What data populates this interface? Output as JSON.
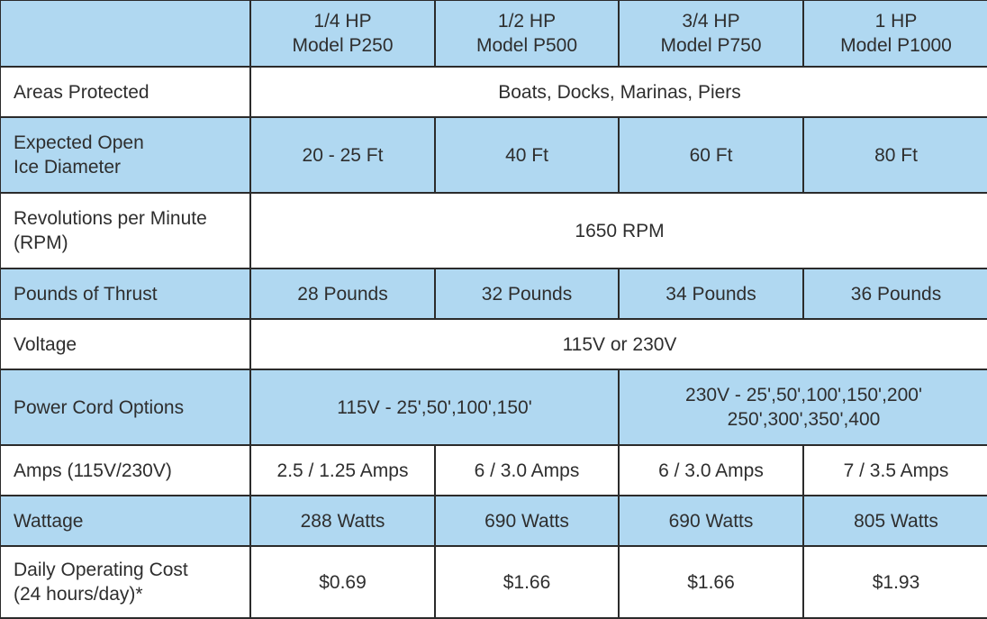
{
  "header": [
    "",
    "1/4 HP\nModel P250",
    "1/2 HP\nModel P500",
    "3/4 HP\nModel P750",
    "1 HP\nModel P1000"
  ],
  "rows": [
    {
      "label": "Areas Protected",
      "cells": [
        {
          "text": "Boats, Docks, Marinas, Piers",
          "span": 4
        }
      ]
    },
    {
      "label": "Expected Open\nIce Diameter",
      "cells": [
        {
          "text": "20 - 25 Ft"
        },
        {
          "text": "40 Ft"
        },
        {
          "text": "60 Ft"
        },
        {
          "text": "80 Ft"
        }
      ]
    },
    {
      "label": "Revolutions per Minute\n(RPM)",
      "cells": [
        {
          "text": "1650 RPM",
          "span": 4
        }
      ]
    },
    {
      "label": "Pounds of Thrust",
      "cells": [
        {
          "text": "28 Pounds"
        },
        {
          "text": "32 Pounds"
        },
        {
          "text": "34 Pounds"
        },
        {
          "text": "36 Pounds"
        }
      ]
    },
    {
      "label": "Voltage",
      "cells": [
        {
          "text": "115V or 230V",
          "span": 4
        }
      ]
    },
    {
      "label": "Power Cord Options",
      "cells": [
        {
          "text": "115V - 25',50',100',150'",
          "span": 2
        },
        {
          "text": "230V - 25',50',100',150',200'\n250',300',350',400",
          "span": 2
        }
      ]
    },
    {
      "label": "Amps (115V/230V)",
      "cells": [
        {
          "text": "2.5 / 1.25 Amps"
        },
        {
          "text": "6 / 3.0 Amps"
        },
        {
          "text": "6 / 3.0 Amps"
        },
        {
          "text": "7 / 3.5 Amps"
        }
      ]
    },
    {
      "label": "Wattage",
      "cells": [
        {
          "text": "288 Watts"
        },
        {
          "text": "690 Watts"
        },
        {
          "text": "690 Watts"
        },
        {
          "text": "805 Watts"
        }
      ]
    },
    {
      "label": "Daily Operating Cost\n(24 hours/day)*",
      "cells": [
        {
          "text": "$0.69"
        },
        {
          "text": "$1.66"
        },
        {
          "text": "$1.66"
        },
        {
          "text": "$1.93"
        }
      ]
    }
  ],
  "colors": {
    "header_row": "#b0d8f1",
    "alt_row": "#ffffff",
    "border": "#2b2b2b",
    "text": "#2e2e2e"
  }
}
